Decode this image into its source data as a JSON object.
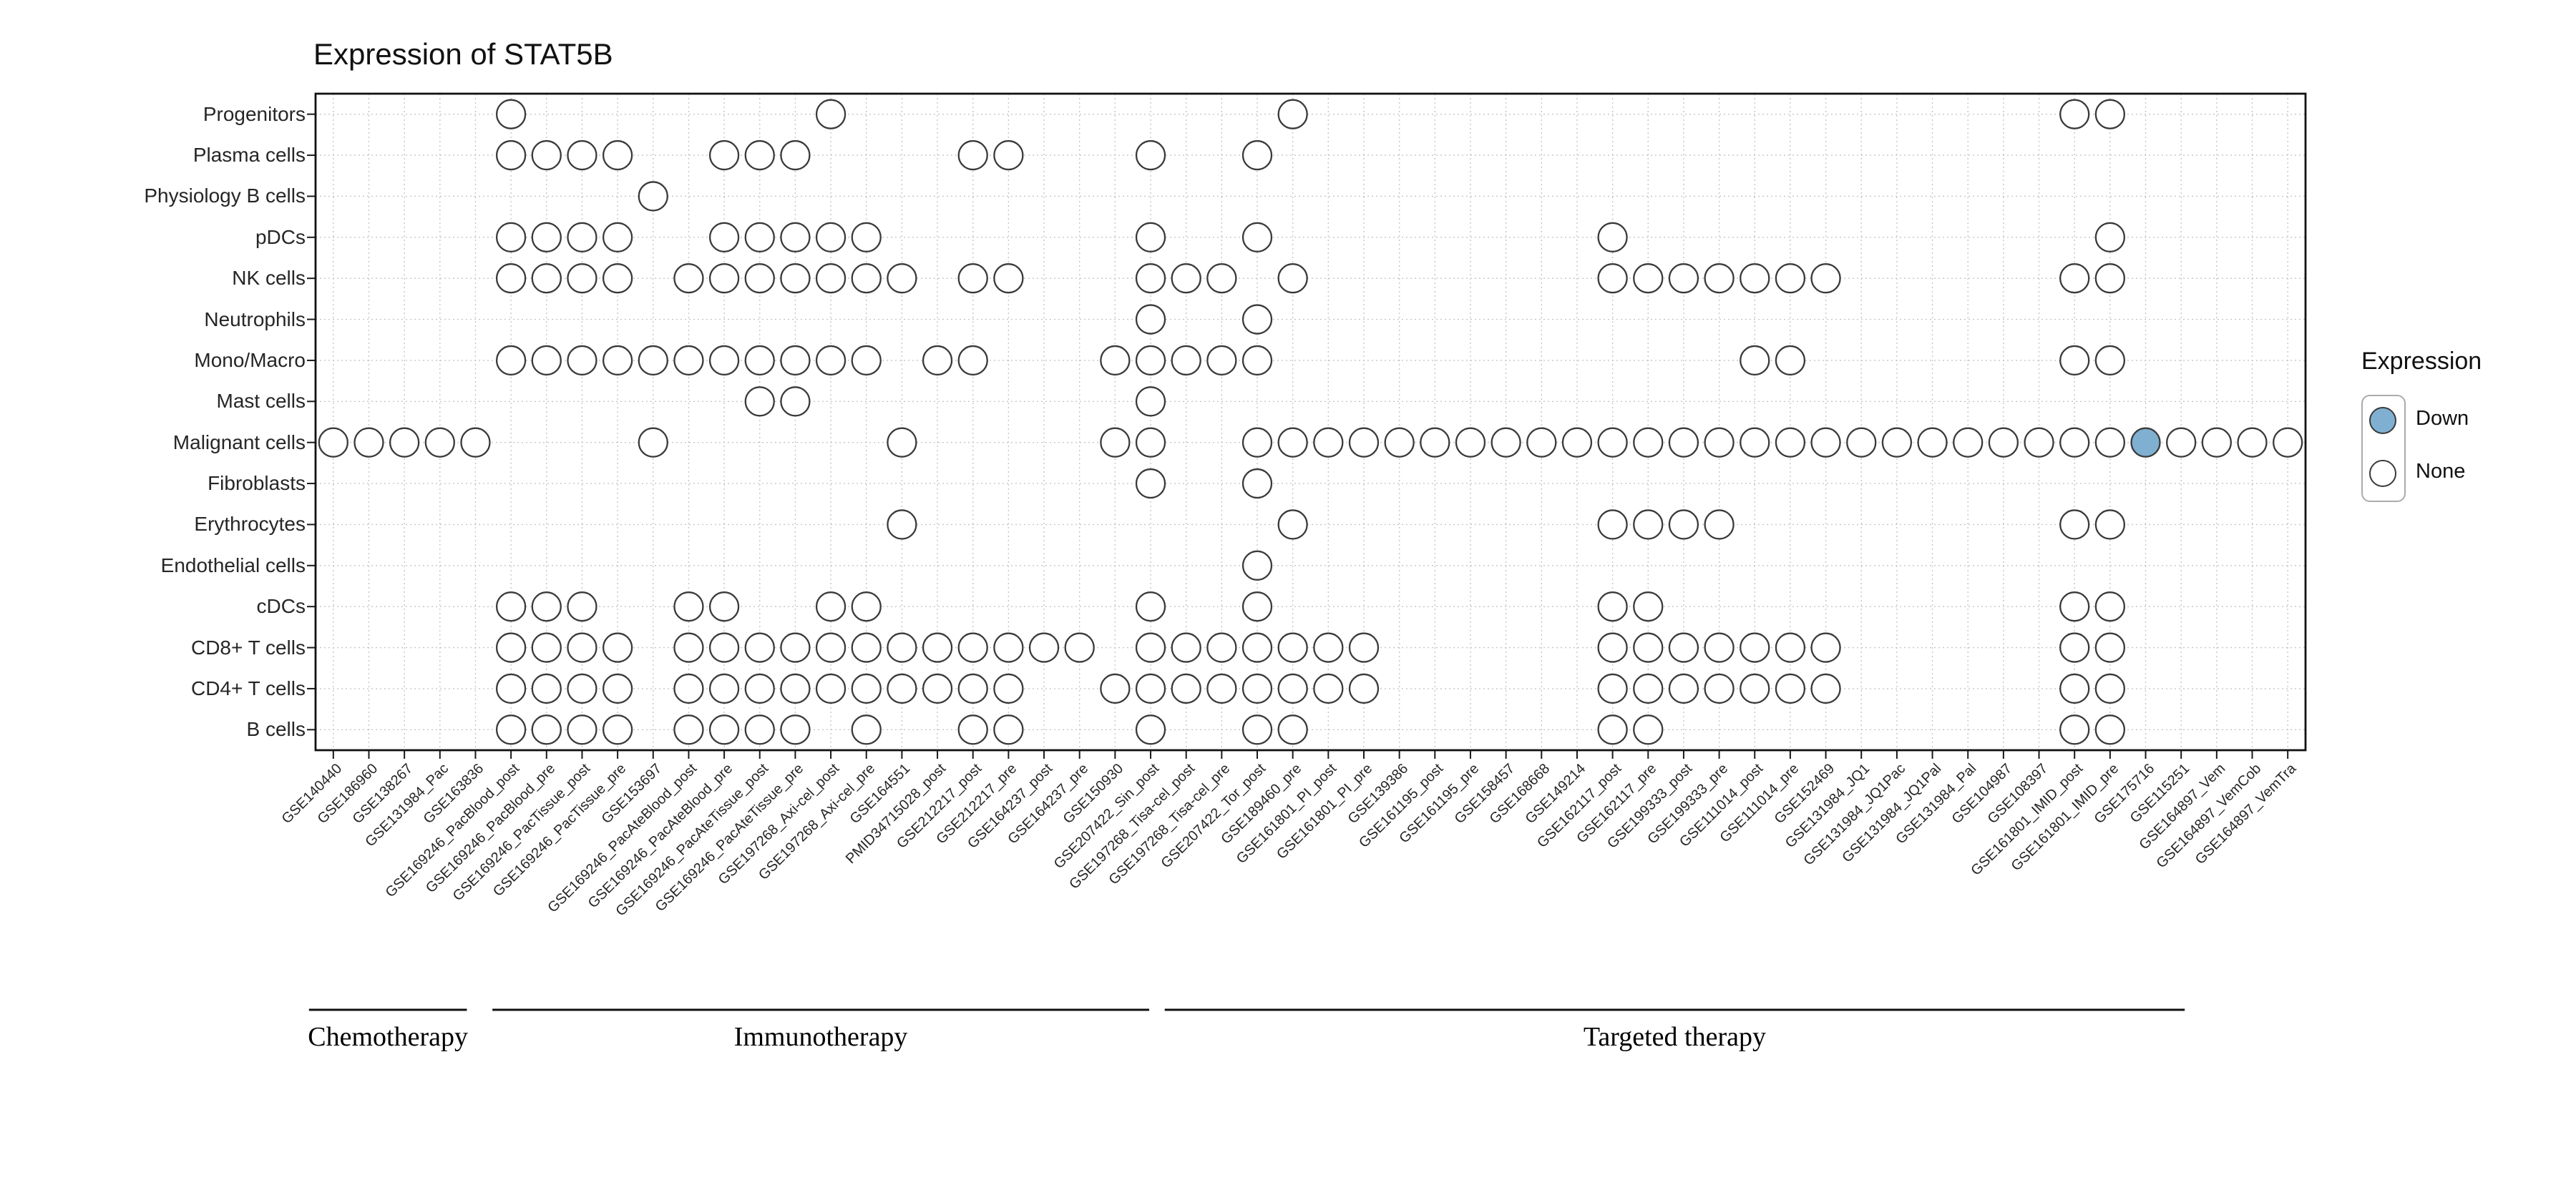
{
  "title": "Expression of STAT5B",
  "colors": {
    "down": "#7FB0D2",
    "none": "#FFFFFF",
    "dot_stroke": "#3A3A3A",
    "grid": "#C6C6C6",
    "axis": "#1A1A1A"
  },
  "legend": {
    "title": "Expression",
    "items": [
      {
        "label": "Down",
        "color": "#7FB0D2"
      },
      {
        "label": "None",
        "color": "#FFFFFF"
      }
    ]
  },
  "chart_data": {
    "type": "scatter",
    "subtype": "presence-dot-matrix",
    "title": "Expression of STAT5B",
    "xlabel": "",
    "ylabel": "",
    "grid": "dotted",
    "legend_position": "right",
    "rows": [
      "Progenitors",
      "Plasma cells",
      "Physiology B cells",
      "pDCs",
      "NK cells",
      "Neutrophils",
      "Mono/Macro",
      "Mast cells",
      "Malignant cells",
      "Fibroblasts",
      "Erythrocytes",
      "Endothelial cells",
      "cDCs",
      "CD8+ T cells",
      "CD4+ T cells",
      "B cells"
    ],
    "columns": [
      "GSE140440",
      "GSE186960",
      "GSE138267",
      "GSE131984_Pac",
      "GSE163836",
      "GSE169246_PacBlood_post",
      "GSE169246_PacBlood_pre",
      "GSE169246_PacTissue_post",
      "GSE169246_PacTissue_pre",
      "GSE153697",
      "GSE169246_PacAteBlood_post",
      "GSE169246_PacAteBlood_pre",
      "GSE169246_PacAteTissue_post",
      "GSE169246_PacAteTissue_pre",
      "GSE197268_Axi-cel_post",
      "GSE197268_Axi-cel_pre",
      "GSE164551",
      "PMID34715028_post",
      "GSE212217_post",
      "GSE212217_pre",
      "GSE164237_post",
      "GSE164237_pre",
      "GSE150930",
      "GSE207422_Sin_post",
      "GSE197268_Tisa-cel_post",
      "GSE197268_Tisa-cel_pre",
      "GSE207422_Tor_post",
      "GSE189460_pre",
      "GSE161801_PI_post",
      "GSE161801_PI_pre",
      "GSE139386",
      "GSE161195_post",
      "GSE161195_pre",
      "GSE158457",
      "GSE168668",
      "GSE149214",
      "GSE162117_post",
      "GSE162117_pre",
      "GSE199333_post",
      "GSE199333_pre",
      "GSE111014_post",
      "GSE111014_pre",
      "GSE152469",
      "GSE131984_JQ1",
      "GSE131984_JQ1Pac",
      "GSE131984_JQ1Pal",
      "GSE131984_Pal",
      "GSE104987",
      "GSE108397",
      "GSE161801_IMID_post",
      "GSE161801_IMID_pre",
      "GSE175716",
      "GSE115251",
      "GSE164897_Vem",
      "GSE164897_VemCob",
      "GSE164897_VemTra"
    ],
    "dots": [
      {
        "row": "Progenitors",
        "cols": [
          6,
          15,
          28,
          50,
          51
        ]
      },
      {
        "row": "Plasma cells",
        "cols": [
          6,
          7,
          8,
          9,
          12,
          13,
          14,
          19,
          20,
          24,
          27
        ]
      },
      {
        "row": "Physiology B cells",
        "cols": [
          10
        ]
      },
      {
        "row": "pDCs",
        "cols": [
          6,
          7,
          8,
          9,
          12,
          13,
          14,
          15,
          16,
          24,
          27,
          37,
          51
        ]
      },
      {
        "row": "NK cells",
        "cols": [
          6,
          7,
          8,
          9,
          11,
          12,
          13,
          14,
          15,
          16,
          17,
          19,
          20,
          24,
          25,
          26,
          28,
          37,
          38,
          39,
          40,
          41,
          42,
          43,
          50,
          51
        ]
      },
      {
        "row": "Neutrophils",
        "cols": [
          24,
          27
        ]
      },
      {
        "row": "Mono/Macro",
        "cols": [
          6,
          7,
          8,
          9,
          10,
          11,
          12,
          13,
          14,
          15,
          16,
          18,
          19,
          23,
          24,
          25,
          26,
          27,
          41,
          42,
          50,
          51
        ]
      },
      {
        "row": "Mast cells",
        "cols": [
          13,
          14,
          24
        ]
      },
      {
        "row": "Malignant cells",
        "cols": [
          1,
          2,
          3,
          4,
          5,
          10,
          17,
          23,
          24,
          27,
          28,
          29,
          30,
          31,
          32,
          33,
          34,
          35,
          36,
          37,
          38,
          39,
          40,
          41,
          42,
          43,
          44,
          45,
          46,
          47,
          48,
          49,
          50,
          51,
          52,
          53,
          54,
          55,
          56
        ]
      },
      {
        "row": "Fibroblasts",
        "cols": [
          24,
          27
        ]
      },
      {
        "row": "Erythrocytes",
        "cols": [
          17,
          28,
          37,
          38,
          39,
          40,
          50,
          51
        ]
      },
      {
        "row": "Endothelial cells",
        "cols": [
          27
        ]
      },
      {
        "row": "cDCs",
        "cols": [
          6,
          7,
          8,
          11,
          12,
          15,
          16,
          24,
          27,
          37,
          38,
          50,
          51
        ]
      },
      {
        "row": "CD8+ T cells",
        "cols": [
          6,
          7,
          8,
          9,
          11,
          12,
          13,
          14,
          15,
          16,
          17,
          18,
          19,
          20,
          21,
          22,
          24,
          25,
          26,
          27,
          28,
          29,
          30,
          37,
          38,
          39,
          40,
          41,
          42,
          43,
          50,
          51
        ]
      },
      {
        "row": "CD4+ T cells",
        "cols": [
          6,
          7,
          8,
          9,
          11,
          12,
          13,
          14,
          15,
          16,
          17,
          18,
          19,
          20,
          23,
          24,
          25,
          26,
          27,
          28,
          29,
          30,
          37,
          38,
          39,
          40,
          41,
          42,
          43,
          50,
          51
        ]
      },
      {
        "row": "B cells",
        "cols": [
          6,
          7,
          8,
          9,
          11,
          12,
          13,
          14,
          16,
          19,
          20,
          24,
          27,
          28,
          37,
          38,
          50,
          51
        ]
      }
    ],
    "down": [
      {
        "row": "Malignant cells",
        "col": 52,
        "column": "GSE175716"
      }
    ],
    "groups": [
      {
        "label": "Chemotherapy",
        "start": 1,
        "end": 5
      },
      {
        "label": "Immunotherapy",
        "start": 6,
        "end": 24
      },
      {
        "label": "Targeted therapy",
        "start": 25,
        "end": 56
      }
    ]
  }
}
